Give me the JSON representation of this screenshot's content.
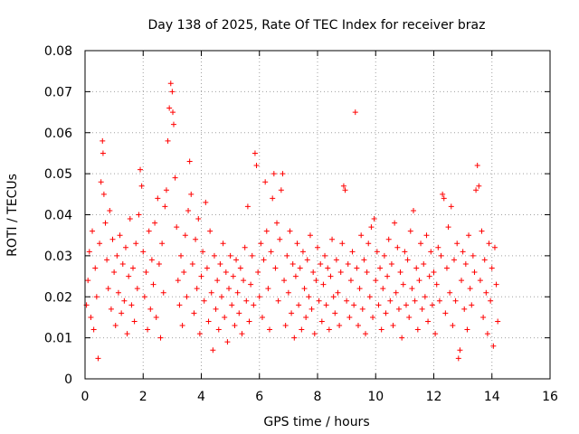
{
  "chart_data": {
    "type": "scatter",
    "title": "Day 138 of 2025, Rate Of TEC Index for receiver braz",
    "xlabel": "GPS time / hours",
    "ylabel": "ROTI / TECUs",
    "xlim": [
      0,
      16
    ],
    "ylim": [
      0,
      0.08
    ],
    "x_ticks": [
      "0",
      "2",
      "4",
      "6",
      "8",
      "10",
      "12",
      "14",
      "16"
    ],
    "y_ticks": [
      "0",
      "0.01",
      "0.02",
      "0.03",
      "0.04",
      "0.05",
      "0.06",
      "0.07",
      "0.08"
    ],
    "grid": true,
    "marker": "+",
    "color": "#ff0000",
    "series": [
      {
        "points": [
          [
            0.05,
            0.018
          ],
          [
            0.1,
            0.024
          ],
          [
            0.15,
            0.031
          ],
          [
            0.2,
            0.015
          ],
          [
            0.25,
            0.036
          ],
          [
            0.3,
            0.012
          ],
          [
            0.35,
            0.027
          ],
          [
            0.4,
            0.02
          ],
          [
            0.45,
            0.005
          ],
          [
            0.5,
            0.033
          ],
          [
            0.55,
            0.048
          ],
          [
            0.6,
            0.058
          ],
          [
            0.62,
            0.055
          ],
          [
            0.65,
            0.045
          ],
          [
            0.7,
            0.038
          ],
          [
            0.75,
            0.029
          ],
          [
            0.8,
            0.022
          ],
          [
            0.85,
            0.041
          ],
          [
            0.9,
            0.017
          ],
          [
            0.95,
            0.034
          ],
          [
            1.0,
            0.026
          ],
          [
            1.05,
            0.013
          ],
          [
            1.1,
            0.03
          ],
          [
            1.15,
            0.021
          ],
          [
            1.2,
            0.035
          ],
          [
            1.25,
            0.016
          ],
          [
            1.3,
            0.028
          ],
          [
            1.35,
            0.019
          ],
          [
            1.4,
            0.032
          ],
          [
            1.45,
            0.011
          ],
          [
            1.5,
            0.025
          ],
          [
            1.55,
            0.039
          ],
          [
            1.6,
            0.018
          ],
          [
            1.65,
            0.027
          ],
          [
            1.7,
            0.014
          ],
          [
            1.75,
            0.033
          ],
          [
            1.8,
            0.022
          ],
          [
            1.85,
            0.04
          ],
          [
            1.9,
            0.051
          ],
          [
            1.95,
            0.047
          ],
          [
            2.0,
            0.031
          ],
          [
            2.05,
            0.02
          ],
          [
            2.1,
            0.026
          ],
          [
            2.15,
            0.012
          ],
          [
            2.2,
            0.036
          ],
          [
            2.25,
            0.017
          ],
          [
            2.3,
            0.029
          ],
          [
            2.35,
            0.023
          ],
          [
            2.4,
            0.038
          ],
          [
            2.45,
            0.015
          ],
          [
            2.5,
            0.044
          ],
          [
            2.55,
            0.028
          ],
          [
            2.6,
            0.01
          ],
          [
            2.65,
            0.033
          ],
          [
            2.7,
            0.021
          ],
          [
            2.75,
            0.042
          ],
          [
            2.8,
            0.046
          ],
          [
            2.85,
            0.058
          ],
          [
            2.9,
            0.066
          ],
          [
            2.95,
            0.072
          ],
          [
            3.0,
            0.07
          ],
          [
            3.02,
            0.065
          ],
          [
            3.05,
            0.062
          ],
          [
            3.1,
            0.049
          ],
          [
            3.15,
            0.037
          ],
          [
            3.2,
            0.024
          ],
          [
            3.25,
            0.018
          ],
          [
            3.3,
            0.03
          ],
          [
            3.35,
            0.013
          ],
          [
            3.4,
            0.026
          ],
          [
            3.45,
            0.035
          ],
          [
            3.5,
            0.02
          ],
          [
            3.55,
            0.041
          ],
          [
            3.6,
            0.053
          ],
          [
            3.65,
            0.045
          ],
          [
            3.7,
            0.028
          ],
          [
            3.75,
            0.016
          ],
          [
            3.8,
            0.034
          ],
          [
            3.85,
            0.022
          ],
          [
            3.9,
            0.039
          ],
          [
            3.95,
            0.011
          ],
          [
            4.0,
            0.025
          ],
          [
            4.05,
            0.031
          ],
          [
            4.1,
            0.019
          ],
          [
            4.15,
            0.043
          ],
          [
            4.2,
            0.027
          ],
          [
            4.25,
            0.014
          ],
          [
            4.3,
            0.036
          ],
          [
            4.35,
            0.021
          ],
          [
            4.4,
            0.007
          ],
          [
            4.45,
            0.03
          ],
          [
            4.5,
            0.017
          ],
          [
            4.55,
            0.024
          ],
          [
            4.6,
            0.012
          ],
          [
            4.65,
            0.028
          ],
          [
            4.7,
            0.02
          ],
          [
            4.75,
            0.033
          ],
          [
            4.8,
            0.015
          ],
          [
            4.85,
            0.026
          ],
          [
            4.9,
            0.009
          ],
          [
            4.95,
            0.022
          ],
          [
            5.0,
            0.03
          ],
          [
            5.05,
            0.018
          ],
          [
            5.1,
            0.025
          ],
          [
            5.15,
            0.013
          ],
          [
            5.2,
            0.029
          ],
          [
            5.25,
            0.021
          ],
          [
            5.3,
            0.016
          ],
          [
            5.35,
            0.027
          ],
          [
            5.4,
            0.011
          ],
          [
            5.45,
            0.024
          ],
          [
            5.5,
            0.032
          ],
          [
            5.55,
            0.019
          ],
          [
            5.6,
            0.042
          ],
          [
            5.65,
            0.014
          ],
          [
            5.7,
            0.023
          ],
          [
            5.75,
            0.03
          ],
          [
            5.8,
            0.018
          ],
          [
            5.85,
            0.055
          ],
          [
            5.9,
            0.052
          ],
          [
            5.95,
            0.026
          ],
          [
            6.0,
            0.02
          ],
          [
            6.05,
            0.033
          ],
          [
            6.1,
            0.015
          ],
          [
            6.15,
            0.029
          ],
          [
            6.2,
            0.048
          ],
          [
            6.25,
            0.036
          ],
          [
            6.3,
            0.022
          ],
          [
            6.35,
            0.012
          ],
          [
            6.4,
            0.031
          ],
          [
            6.45,
            0.044
          ],
          [
            6.5,
            0.05
          ],
          [
            6.55,
            0.027
          ],
          [
            6.6,
            0.038
          ],
          [
            6.65,
            0.019
          ],
          [
            6.7,
            0.034
          ],
          [
            6.75,
            0.046
          ],
          [
            6.8,
            0.05
          ],
          [
            6.85,
            0.024
          ],
          [
            6.9,
            0.013
          ],
          [
            6.95,
            0.03
          ],
          [
            7.0,
            0.021
          ],
          [
            7.05,
            0.036
          ],
          [
            7.1,
            0.016
          ],
          [
            7.15,
            0.028
          ],
          [
            7.2,
            0.01
          ],
          [
            7.25,
            0.025
          ],
          [
            7.3,
            0.033
          ],
          [
            7.35,
            0.018
          ],
          [
            7.4,
            0.027
          ],
          [
            7.45,
            0.012
          ],
          [
            7.5,
            0.031
          ],
          [
            7.55,
            0.022
          ],
          [
            7.6,
            0.015
          ],
          [
            7.65,
            0.029
          ],
          [
            7.7,
            0.02
          ],
          [
            7.75,
            0.035
          ],
          [
            7.8,
            0.017
          ],
          [
            7.85,
            0.026
          ],
          [
            7.9,
            0.011
          ],
          [
            7.95,
            0.024
          ],
          [
            8.0,
            0.032
          ],
          [
            8.05,
            0.019
          ],
          [
            8.1,
            0.028
          ],
          [
            8.15,
            0.014
          ],
          [
            8.2,
            0.023
          ],
          [
            8.25,
            0.03
          ],
          [
            8.3,
            0.018
          ],
          [
            8.35,
            0.027
          ],
          [
            8.4,
            0.012
          ],
          [
            8.45,
            0.025
          ],
          [
            8.5,
            0.034
          ],
          [
            8.55,
            0.02
          ],
          [
            8.6,
            0.016
          ],
          [
            8.65,
            0.029
          ],
          [
            8.7,
            0.021
          ],
          [
            8.75,
            0.013
          ],
          [
            8.8,
            0.026
          ],
          [
            8.85,
            0.033
          ],
          [
            8.9,
            0.047
          ],
          [
            8.95,
            0.046
          ],
          [
            9.0,
            0.019
          ],
          [
            9.05,
            0.028
          ],
          [
            9.1,
            0.015
          ],
          [
            9.15,
            0.024
          ],
          [
            9.2,
            0.031
          ],
          [
            9.25,
            0.018
          ],
          [
            9.3,
            0.065
          ],
          [
            9.35,
            0.027
          ],
          [
            9.4,
            0.013
          ],
          [
            9.45,
            0.022
          ],
          [
            9.5,
            0.035
          ],
          [
            9.55,
            0.017
          ],
          [
            9.6,
            0.029
          ],
          [
            9.65,
            0.011
          ],
          [
            9.7,
            0.026
          ],
          [
            9.75,
            0.033
          ],
          [
            9.8,
            0.02
          ],
          [
            9.85,
            0.037
          ],
          [
            9.9,
            0.015
          ],
          [
            9.95,
            0.039
          ],
          [
            10.0,
            0.024
          ],
          [
            10.05,
            0.031
          ],
          [
            10.1,
            0.018
          ],
          [
            10.15,
            0.027
          ],
          [
            10.2,
            0.012
          ],
          [
            10.25,
            0.022
          ],
          [
            10.3,
            0.03
          ],
          [
            10.35,
            0.016
          ],
          [
            10.4,
            0.025
          ],
          [
            10.45,
            0.034
          ],
          [
            10.5,
            0.019
          ],
          [
            10.55,
            0.028
          ],
          [
            10.6,
            0.013
          ],
          [
            10.65,
            0.038
          ],
          [
            10.7,
            0.021
          ],
          [
            10.75,
            0.032
          ],
          [
            10.8,
            0.017
          ],
          [
            10.85,
            0.026
          ],
          [
            10.9,
            0.01
          ],
          [
            10.95,
            0.023
          ],
          [
            11.0,
            0.031
          ],
          [
            11.05,
            0.018
          ],
          [
            11.1,
            0.029
          ],
          [
            11.15,
            0.015
          ],
          [
            11.2,
            0.036
          ],
          [
            11.25,
            0.022
          ],
          [
            11.3,
            0.041
          ],
          [
            11.35,
            0.019
          ],
          [
            11.4,
            0.027
          ],
          [
            11.45,
            0.012
          ],
          [
            11.5,
            0.024
          ],
          [
            11.55,
            0.033
          ],
          [
            11.6,
            0.017
          ],
          [
            11.65,
            0.028
          ],
          [
            11.7,
            0.02
          ],
          [
            11.75,
            0.035
          ],
          [
            11.8,
            0.014
          ],
          [
            11.85,
            0.025
          ],
          [
            11.9,
            0.031
          ],
          [
            11.95,
            0.018
          ],
          [
            12.0,
            0.026
          ],
          [
            12.05,
            0.011
          ],
          [
            12.1,
            0.023
          ],
          [
            12.15,
            0.032
          ],
          [
            12.2,
            0.019
          ],
          [
            12.25,
            0.03
          ],
          [
            12.3,
            0.045
          ],
          [
            12.35,
            0.044
          ],
          [
            12.4,
            0.016
          ],
          [
            12.45,
            0.027
          ],
          [
            12.5,
            0.037
          ],
          [
            12.55,
            0.021
          ],
          [
            12.6,
            0.042
          ],
          [
            12.65,
            0.013
          ],
          [
            12.7,
            0.029
          ],
          [
            12.75,
            0.019
          ],
          [
            12.8,
            0.033
          ],
          [
            12.85,
            0.005
          ],
          [
            12.9,
            0.007
          ],
          [
            12.95,
            0.024
          ],
          [
            13.0,
            0.031
          ],
          [
            13.05,
            0.017
          ],
          [
            13.1,
            0.028
          ],
          [
            13.15,
            0.012
          ],
          [
            13.2,
            0.035
          ],
          [
            13.25,
            0.022
          ],
          [
            13.3,
            0.018
          ],
          [
            13.35,
            0.03
          ],
          [
            13.4,
            0.026
          ],
          [
            13.45,
            0.046
          ],
          [
            13.5,
            0.052
          ],
          [
            13.55,
            0.047
          ],
          [
            13.6,
            0.024
          ],
          [
            13.65,
            0.036
          ],
          [
            13.7,
            0.015
          ],
          [
            13.75,
            0.029
          ],
          [
            13.8,
            0.021
          ],
          [
            13.85,
            0.011
          ],
          [
            13.9,
            0.033
          ],
          [
            13.95,
            0.019
          ],
          [
            14.0,
            0.027
          ],
          [
            14.05,
            0.008
          ],
          [
            14.1,
            0.032
          ],
          [
            14.15,
            0.023
          ],
          [
            14.2,
            0.014
          ]
        ]
      }
    ]
  }
}
